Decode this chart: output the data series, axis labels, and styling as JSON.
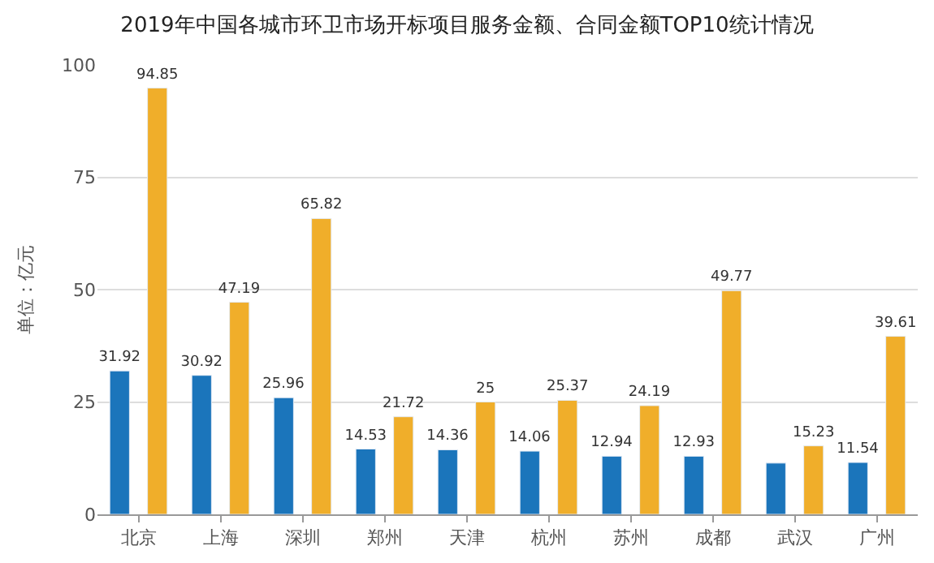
{
  "chart_data": {
    "type": "bar",
    "title": "2019年中国各城市环卫市场开标项目服务金额、合同金额TOP10统计情况",
    "ylabel": "单位：亿元",
    "categories": [
      "北京",
      "上海",
      "深圳",
      "郑州",
      "天津",
      "杭州",
      "苏州",
      "成都",
      "武汉",
      "广州"
    ],
    "series": [
      {
        "color": "#1b75bb",
        "values": [
          31.92,
          30.92,
          25.96,
          14.53,
          14.36,
          14.06,
          12.94,
          12.93,
          11.4,
          11.54
        ],
        "value_labels": [
          "31.92",
          "30.92",
          "25.96",
          "14.53",
          "14.36",
          "14.06",
          "12.94",
          "12.93",
          null,
          "11.54"
        ]
      },
      {
        "color": "#f0ae2a",
        "values": [
          94.85,
          47.19,
          65.82,
          21.72,
          25,
          25.37,
          24.19,
          49.77,
          15.23,
          39.61
        ]
      }
    ],
    "ylim": [
      0,
      100
    ],
    "yticks": [
      0,
      25,
      50,
      75,
      100
    ],
    "grid": "y",
    "data_labels": true,
    "legend": false
  }
}
